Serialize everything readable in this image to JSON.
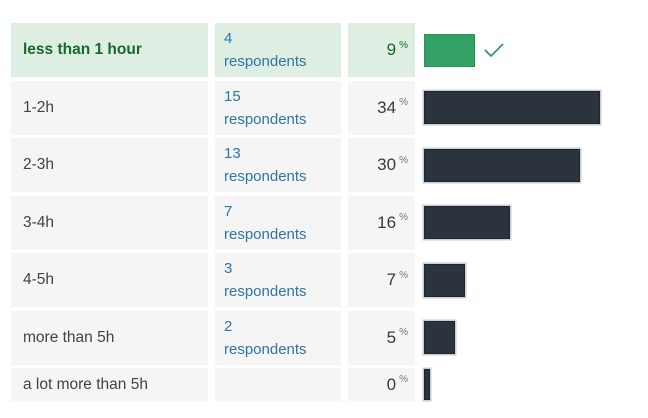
{
  "colors": {
    "row_bg": "#f4f5f4",
    "highlight_bg": "#dfeee3",
    "highlight_text": "#17682c",
    "label_text": "#3d444b",
    "link_text": "#2e75a8",
    "percent_text": "#343b42",
    "percent_sign_text": "#6f767d",
    "bar_dark": "#2a333e",
    "bar_green": "#34a164",
    "check_green": "#2f9e5d"
  },
  "rows": [
    {
      "label": "less than 1 hour",
      "count": "4",
      "respondents_label": "respondents",
      "percent": "9",
      "percent_sign": "%",
      "highlighted": true,
      "selected": true
    },
    {
      "label": "1-2h",
      "count": "15",
      "respondents_label": "respondents",
      "percent": "34",
      "percent_sign": "%",
      "highlighted": false,
      "selected": false
    },
    {
      "label": "2-3h",
      "count": "13",
      "respondents_label": "respondents",
      "percent": "30",
      "percent_sign": "%",
      "highlighted": false,
      "selected": false
    },
    {
      "label": "3-4h",
      "count": "7",
      "respondents_label": "respondents",
      "percent": "16",
      "percent_sign": "%",
      "highlighted": false,
      "selected": false
    },
    {
      "label": "4-5h",
      "count": "3",
      "respondents_label": "respondents",
      "percent": "7",
      "percent_sign": "%",
      "highlighted": false,
      "selected": false
    },
    {
      "label": "more than 5h",
      "count": "2",
      "respondents_label": "respondents",
      "percent": "5",
      "percent_sign": "%",
      "highlighted": false,
      "selected": false
    },
    {
      "label": "a lot more than 5h",
      "count": "",
      "respondents_label": "",
      "percent": "0",
      "percent_sign": "%",
      "highlighted": false,
      "selected": false
    }
  ],
  "chart_data": {
    "type": "bar",
    "orientation": "horizontal",
    "categories": [
      "less than 1 hour",
      "1-2h",
      "2-3h",
      "3-4h",
      "4-5h",
      "more than 5h",
      "a lot more than 5h"
    ],
    "series": [
      {
        "name": "respondents",
        "values": [
          4,
          15,
          13,
          7,
          3,
          2,
          0
        ]
      },
      {
        "name": "percent",
        "values": [
          9,
          34,
          30,
          16,
          7,
          5,
          0
        ]
      }
    ],
    "title": "",
    "xlabel": "",
    "ylabel": "",
    "xlim": [
      0,
      34
    ],
    "grid": false,
    "legend": false,
    "highlighted_category": "less than 1 hour"
  }
}
